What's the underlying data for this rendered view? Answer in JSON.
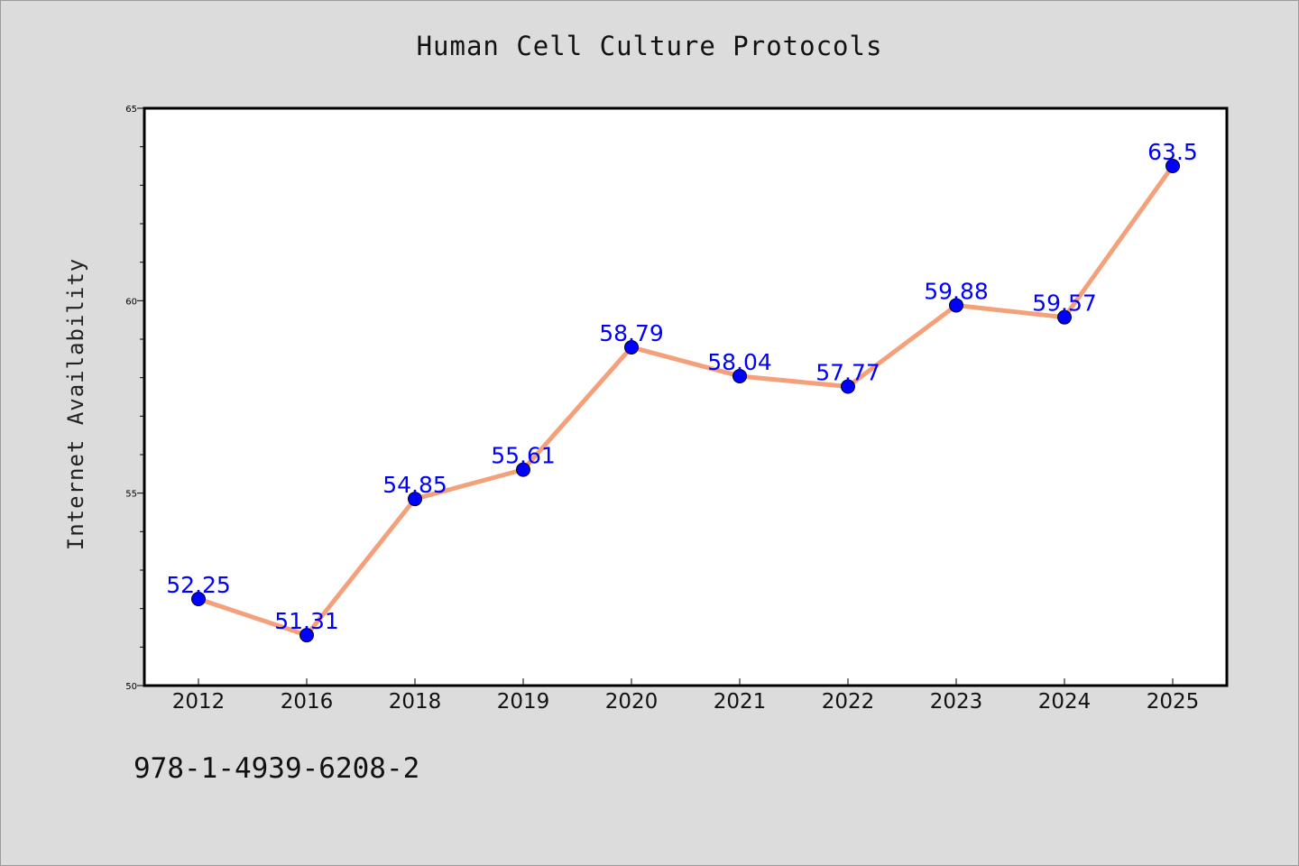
{
  "chart_data": {
    "type": "line",
    "title": "Human Cell Culture Protocols",
    "xlabel": "",
    "ylabel": "Internet Availability",
    "categories": [
      "2012",
      "2016",
      "2018",
      "2019",
      "2020",
      "2021",
      "2022",
      "2023",
      "2024",
      "2025"
    ],
    "series": [
      {
        "values": [
          52.25,
          51.31,
          54.85,
          55.61,
          58.79,
          58.04,
          57.77,
          59.88,
          59.57,
          63.5
        ]
      }
    ],
    "data_labels": [
      "52.25",
      "51.31",
      "54.85",
      "55.61",
      "58.79",
      "58.04",
      "57.77",
      "59.88",
      "59.57",
      "63.5"
    ],
    "ylim": [
      50,
      65
    ],
    "yticks": [
      "50",
      "55",
      "60",
      "65"
    ],
    "grid": false,
    "legend": "none",
    "line_color": "#f4a07a",
    "marker_color": "#0000ff",
    "label_color": "#0000ff"
  },
  "footer_text": "978-1-4939-6208-2"
}
